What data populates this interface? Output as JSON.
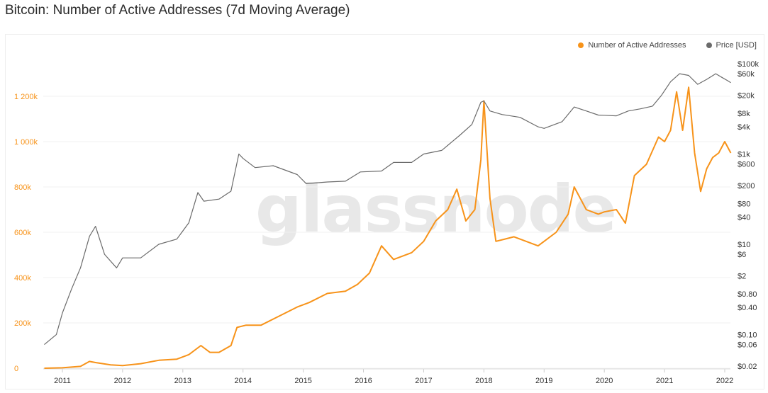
{
  "title": "Bitcoin: Number of Active Addresses (7d Moving Average)",
  "watermark": "glassnode",
  "legend": [
    {
      "label": "Number of Active Addresses",
      "color": "#f7931a"
    },
    {
      "label": "Price [USD]",
      "color": "#6b6b6b"
    }
  ],
  "chart_data": {
    "type": "line",
    "x_ticks": [
      "2011",
      "2012",
      "2013",
      "2014",
      "2015",
      "2016",
      "2017",
      "2018",
      "2019",
      "2020",
      "2021",
      "2022"
    ],
    "y_left_ticks": [
      "0",
      "200k",
      "400k",
      "600k",
      "800k",
      "1 000k",
      "1 200k"
    ],
    "y_left_range": [
      0,
      1300000
    ],
    "y_right_ticks": [
      "$0.02",
      "$0.06",
      "$0.10",
      "$0.40",
      "$0.80",
      "$2",
      "$6",
      "$10",
      "$40",
      "$80",
      "$200",
      "$600",
      "$1k",
      "$4k",
      "$8k",
      "$20k",
      "$60k",
      "$100k"
    ],
    "y_right_scale": "log",
    "grid": true,
    "legend_position": "top-right",
    "series": [
      {
        "name": "Number of Active Addresses",
        "color": "#f7931a",
        "axis": "left",
        "x": [
          2010.7,
          2011.0,
          2011.3,
          2011.45,
          2011.55,
          2011.8,
          2012.0,
          2012.3,
          2012.6,
          2012.9,
          2013.1,
          2013.3,
          2013.45,
          2013.6,
          2013.8,
          2013.9,
          2014.05,
          2014.3,
          2014.6,
          2014.9,
          2015.1,
          2015.4,
          2015.7,
          2015.9,
          2016.1,
          2016.3,
          2016.5,
          2016.8,
          2017.0,
          2017.2,
          2017.4,
          2017.55,
          2017.7,
          2017.85,
          2017.95,
          2018.0,
          2018.1,
          2018.2,
          2018.35,
          2018.5,
          2018.7,
          2018.9,
          2019.0,
          2019.2,
          2019.4,
          2019.5,
          2019.7,
          2019.9,
          2020.0,
          2020.2,
          2020.35,
          2020.5,
          2020.7,
          2020.9,
          2021.0,
          2021.1,
          2021.2,
          2021.3,
          2021.4,
          2021.5,
          2021.6,
          2021.7,
          2021.8,
          2021.9,
          2022.0,
          2022.1
        ],
        "values": [
          0,
          2000,
          8000,
          30000,
          25000,
          15000,
          12000,
          20000,
          35000,
          40000,
          60000,
          100000,
          70000,
          70000,
          100000,
          180000,
          190000,
          190000,
          230000,
          270000,
          290000,
          330000,
          340000,
          370000,
          420000,
          540000,
          480000,
          510000,
          560000,
          650000,
          700000,
          790000,
          650000,
          700000,
          920000,
          1180000,
          750000,
          560000,
          570000,
          580000,
          560000,
          540000,
          560000,
          600000,
          680000,
          800000,
          700000,
          680000,
          690000,
          700000,
          640000,
          850000,
          900000,
          1020000,
          1000000,
          1050000,
          1220000,
          1050000,
          1240000,
          950000,
          780000,
          880000,
          930000,
          950000,
          1000000,
          950000
        ]
      },
      {
        "name": "Price [USD]",
        "color": "#6b6b6b",
        "axis": "right",
        "x": [
          2010.7,
          2010.9,
          2011.0,
          2011.15,
          2011.3,
          2011.45,
          2011.55,
          2011.7,
          2011.9,
          2012.0,
          2012.3,
          2012.6,
          2012.9,
          2013.1,
          2013.25,
          2013.35,
          2013.6,
          2013.8,
          2013.93,
          2014.0,
          2014.2,
          2014.5,
          2014.9,
          2015.05,
          2015.4,
          2015.7,
          2015.95,
          2016.3,
          2016.5,
          2016.8,
          2017.0,
          2017.3,
          2017.6,
          2017.8,
          2017.95,
          2018.0,
          2018.1,
          2018.3,
          2018.6,
          2018.9,
          2019.0,
          2019.3,
          2019.5,
          2019.7,
          2019.9,
          2020.0,
          2020.2,
          2020.4,
          2020.6,
          2020.8,
          2020.95,
          2021.1,
          2021.25,
          2021.4,
          2021.55,
          2021.7,
          2021.85,
          2021.95,
          2022.05,
          2022.1
        ],
        "values": [
          0.06,
          0.1,
          0.3,
          1,
          3,
          15,
          25,
          6,
          3,
          5,
          5,
          10,
          13,
          30,
          140,
          90,
          100,
          150,
          1000,
          800,
          500,
          550,
          350,
          220,
          240,
          250,
          400,
          420,
          650,
          650,
          1000,
          1200,
          2600,
          4500,
          14000,
          15000,
          9000,
          7500,
          6500,
          4000,
          3700,
          5200,
          11000,
          9000,
          7300,
          7200,
          7000,
          9000,
          10000,
          11500,
          20000,
          40000,
          60000,
          55000,
          35000,
          45000,
          60000,
          50000,
          42000,
          38000
        ]
      }
    ]
  }
}
